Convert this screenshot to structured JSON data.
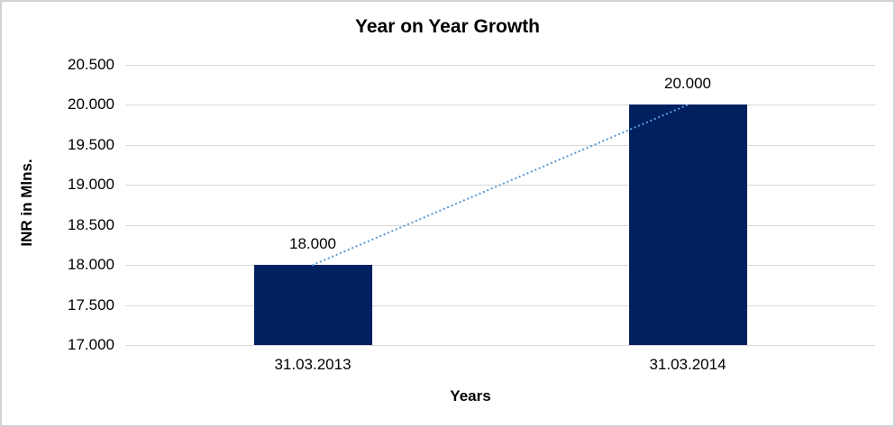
{
  "chart_data": {
    "type": "bar",
    "title": "Year on Year Growth",
    "xlabel": "Years",
    "ylabel": "INR in Mlns.",
    "categories": [
      "31.03.2013",
      "31.03.2014"
    ],
    "values": [
      18.0,
      20.0
    ],
    "bar_labels": [
      "18.000",
      "20.000"
    ],
    "ylim": [
      17.0,
      20.5
    ],
    "ytick_values": [
      17.0,
      17.5,
      18.0,
      18.5,
      19.0,
      19.5,
      20.0,
      20.5
    ],
    "ytick_labels": [
      "17.000",
      "17.500",
      "18.000",
      "18.500",
      "19.000",
      "19.500",
      "20.000",
      "20.500"
    ],
    "grid": true,
    "legend": false,
    "bar_color": "#002060",
    "gridline_color": "#d9d9d9",
    "trendline": {
      "type": "linear",
      "style": "dotted",
      "color": "#5b9bd5"
    }
  }
}
